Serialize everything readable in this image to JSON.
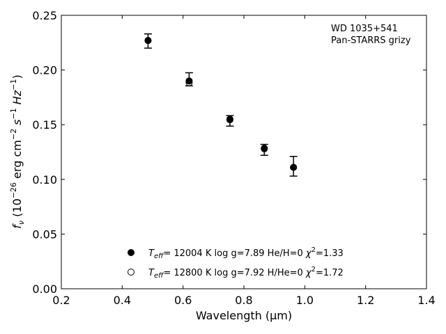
{
  "chart_data": {
    "type": "scatter",
    "xlabel": "Wavelength (μm)",
    "ylabel": {
      "prefix": "f",
      "sub": "ν",
      "open": " (10",
      "exp": "−26",
      "mid": " erg cm",
      "exp2": "−2",
      "mid2": " s",
      "exp3": "−1",
      "mid3": " Hz",
      "exp4": "−1",
      "close": ")"
    },
    "xlim": [
      0.2,
      1.4
    ],
    "ylim": [
      0.0,
      0.25
    ],
    "xticks": [
      "0.2",
      "0.4",
      "0.6",
      "0.8",
      "1.0",
      "1.2",
      "1.4"
    ],
    "yticks": [
      "0.00",
      "0.05",
      "0.10",
      "0.15",
      "0.20",
      "0.25"
    ],
    "annotation": [
      "WD 1035+541",
      "Pan-STARRS grizy"
    ],
    "observed": {
      "x": [
        0.485,
        0.62,
        0.754,
        0.867,
        0.963
      ],
      "y": [
        0.2265,
        0.1915,
        0.1535,
        0.127,
        0.112
      ],
      "yerr": [
        0.0065,
        0.006,
        0.0048,
        0.005,
        0.009
      ]
    },
    "series": [
      {
        "name": "T_eff= 12004 K  log g=7.89  He/H=0  χ²=1.33",
        "marker": "filled",
        "x": [
          0.485,
          0.62,
          0.754,
          0.867,
          0.963
        ],
        "y": [
          0.227,
          0.19,
          0.155,
          0.128,
          0.111
        ]
      },
      {
        "name": "T_eff= 12800 K  log g=7.92  H/He=0  χ²=1.72",
        "marker": "open",
        "x": [
          0.485,
          0.62,
          0.754,
          0.867,
          0.963
        ],
        "y": [
          0.227,
          0.1885,
          0.1545,
          0.1285,
          0.111
        ]
      }
    ],
    "legend": [
      {
        "marker": "filled",
        "T": "T",
        "Tsub": "eff",
        "rest": "= 12004 K  log g=7.89  He/H=0  ",
        "chi": "χ",
        "chisup": "2",
        "chival": "=1.33"
      },
      {
        "marker": "open",
        "T": "T",
        "Tsub": "eff",
        "rest": "= 12800 K  log g=7.92  H/He=0  ",
        "chi": "χ",
        "chisup": "2",
        "chival": "=1.72"
      }
    ],
    "legend_position": "lower-center",
    "grid": false,
    "colors": {
      "marker": "#000000",
      "axes": "#000000",
      "background": "#ffffff"
    }
  }
}
